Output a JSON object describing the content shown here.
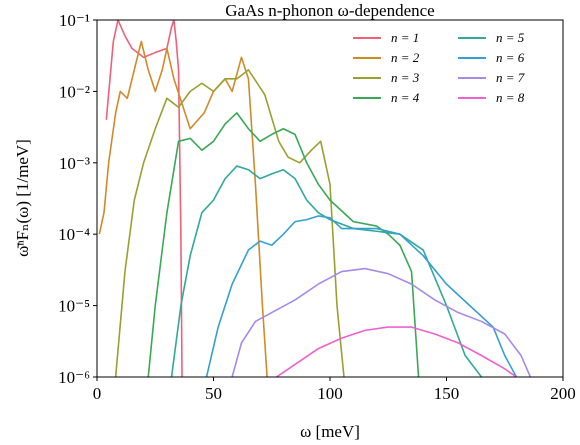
{
  "chart_data": {
    "type": "line",
    "title": "GaAs n-phonon ω-dependence",
    "xlabel": "ω [meV]",
    "ylabel": "ω̄ⁿFₙ(ω) [1/meV]",
    "xlim": [
      0,
      200
    ],
    "xticks": [
      0,
      50,
      100,
      150,
      200
    ],
    "ylim": [
      1e-06,
      0.1
    ],
    "yticks": [
      {
        "value": 1e-06,
        "label": "10⁻⁶"
      },
      {
        "value": 1e-05,
        "label": "10⁻⁵"
      },
      {
        "value": 0.0001,
        "label": "10⁻⁴"
      },
      {
        "value": 0.001,
        "label": "10⁻³"
      },
      {
        "value": 0.01,
        "label": "10⁻²"
      },
      {
        "value": 0.1,
        "label": "10⁻¹"
      }
    ],
    "yscale": "log",
    "grid": false,
    "legend": "upper right",
    "series": [
      {
        "name": "n = 1",
        "color": "#f0607a",
        "x": [
          4,
          7,
          9,
          12,
          15,
          20,
          25,
          30,
          32,
          33,
          34,
          35,
          36,
          36.5
        ],
        "values": [
          0.004,
          0.05,
          0.1,
          0.06,
          0.04,
          0.03,
          0.035,
          0.04,
          0.08,
          0.1,
          0.05,
          0.02,
          0.0001,
          1e-06
        ]
      },
      {
        "name": "n = 2",
        "color": "#d08a2a",
        "x": [
          1,
          3,
          5,
          8,
          10,
          13,
          16,
          19,
          22,
          25,
          28,
          30,
          33,
          40,
          46,
          50,
          55,
          58,
          62,
          65,
          68,
          71,
          73
        ],
        "values": [
          0.0001,
          0.0002,
          0.001,
          0.005,
          0.01,
          0.008,
          0.02,
          0.05,
          0.02,
          0.01,
          0.02,
          0.04,
          0.015,
          0.003,
          0.005,
          0.01,
          0.015,
          0.01,
          0.03,
          0.015,
          0.0005,
          1e-05,
          1e-06
        ]
      },
      {
        "name": "n = 3",
        "color": "#9aa030",
        "x": [
          8,
          12,
          16,
          20,
          25,
          30,
          35,
          40,
          45,
          50,
          55,
          60,
          65,
          72,
          78,
          82,
          87,
          92,
          96,
          100,
          103,
          106
        ],
        "values": [
          1e-06,
          3e-05,
          0.0003,
          0.001,
          0.003,
          0.008,
          0.006,
          0.01,
          0.013,
          0.01,
          0.015,
          0.015,
          0.02,
          0.009,
          0.002,
          0.0012,
          0.001,
          0.0015,
          0.002,
          0.0005,
          1e-05,
          1e-06
        ]
      },
      {
        "name": "n = 4",
        "color": "#3aa855",
        "x": [
          22,
          25,
          30,
          35,
          40,
          45,
          50,
          55,
          60,
          65,
          70,
          75,
          80,
          85,
          90,
          95,
          100,
          110,
          120,
          125,
          130,
          135,
          138
        ],
        "values": [
          1e-06,
          1e-05,
          0.0002,
          0.002,
          0.0022,
          0.0015,
          0.002,
          0.0035,
          0.005,
          0.003,
          0.002,
          0.0025,
          0.003,
          0.0025,
          0.001,
          0.0005,
          0.0003,
          0.00015,
          0.00013,
          0.0001,
          7e-05,
          3e-05,
          1e-06
        ]
      },
      {
        "name": "n = 5",
        "color": "#30a89a",
        "x": [
          32,
          36,
          40,
          45,
          50,
          55,
          60,
          65,
          70,
          75,
          80,
          85,
          90,
          95,
          100,
          110,
          120,
          130,
          140,
          150,
          158,
          165
        ],
        "values": [
          1e-06,
          1e-05,
          5e-05,
          0.0002,
          0.0003,
          0.0006,
          0.0009,
          0.0008,
          0.0006,
          0.0007,
          0.0008,
          0.0006,
          0.0003,
          0.0002,
          0.00016,
          0.00012,
          0.00011,
          0.0001,
          6e-05,
          1e-05,
          2e-06,
          1e-06
        ]
      },
      {
        "name": "n = 6",
        "color": "#35a0d0",
        "x": [
          47,
          52,
          58,
          65,
          70,
          75,
          80,
          85,
          90,
          95,
          100,
          105,
          110,
          120,
          130,
          140,
          150,
          160,
          170,
          175,
          180
        ],
        "values": [
          1e-06,
          5e-06,
          2e-05,
          6e-05,
          8e-05,
          7e-05,
          0.0001,
          0.00015,
          0.00016,
          0.00018,
          0.00017,
          0.00012,
          0.00012,
          0.00012,
          0.0001,
          5e-05,
          2e-05,
          1e-05,
          5e-06,
          2e-06,
          1e-06
        ]
      },
      {
        "name": "n = 7",
        "color": "#a58ae8",
        "x": [
          58,
          62,
          68,
          75,
          85,
          95,
          105,
          115,
          125,
          135,
          145,
          155,
          165,
          175,
          182,
          186
        ],
        "values": [
          1e-06,
          3e-06,
          6e-06,
          8e-06,
          1.2e-05,
          2e-05,
          3e-05,
          3.3e-05,
          2.8e-05,
          2e-05,
          1.2e-05,
          8e-06,
          6e-06,
          4e-06,
          2e-06,
          1e-06
        ]
      },
      {
        "name": "n = 8",
        "color": "#f060d0",
        "x": [
          77,
          85,
          95,
          105,
          115,
          125,
          135,
          145,
          155,
          165,
          175,
          180
        ],
        "values": [
          1e-06,
          1.5e-06,
          2.5e-06,
          3.5e-06,
          4.5e-06,
          5e-06,
          5e-06,
          4e-06,
          3e-06,
          2e-06,
          1.3e-06,
          1e-06
        ]
      }
    ]
  }
}
